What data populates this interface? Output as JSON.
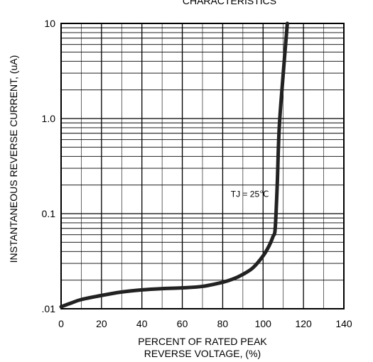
{
  "chart_data": {
    "type": "line",
    "title": "CHARACTERISTICS",
    "xlabel_lines": [
      "PERCENT OF RATED PEAK",
      "REVERSE VOLTAGE, (%)"
    ],
    "ylabel": "INSTANTANEOUS REVERSE CURRENT, (uA)",
    "xlim": [
      0,
      140
    ],
    "ylim": [
      0.01,
      10
    ],
    "yscale": "log",
    "grid": true,
    "x_ticks": [
      0,
      20,
      40,
      60,
      80,
      100,
      120,
      140
    ],
    "x_tick_labels": [
      "0",
      "20",
      "40",
      "60",
      "80",
      "100",
      "120",
      "140"
    ],
    "y_ticks": [
      0.01,
      0.1,
      1.0,
      10
    ],
    "y_tick_labels": [
      ".01",
      "0.1",
      "1.0",
      "10"
    ],
    "annotation": {
      "text": "TJ = 25℃",
      "x": 84,
      "y": 0.15
    },
    "series": [
      {
        "x": [
          0,
          5,
          10,
          20,
          30,
          40,
          50,
          60,
          70,
          80,
          85,
          90,
          95,
          100,
          103,
          105,
          106,
          107,
          108,
          110,
          112
        ],
        "y": [
          0.0105,
          0.0115,
          0.0125,
          0.0138,
          0.015,
          0.0158,
          0.0163,
          0.0166,
          0.0172,
          0.019,
          0.0205,
          0.023,
          0.027,
          0.036,
          0.046,
          0.058,
          0.07,
          0.2,
          0.8,
          3.0,
          10
        ]
      }
    ]
  }
}
